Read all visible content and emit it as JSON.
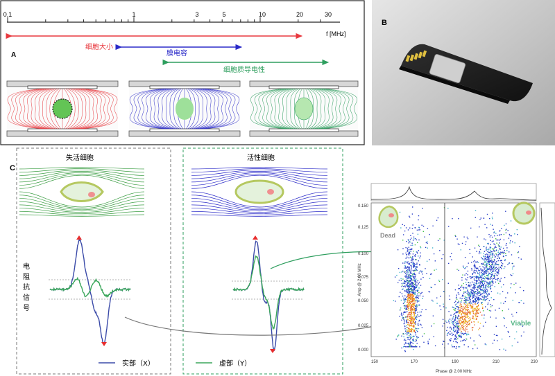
{
  "panel_a": {
    "label": "A",
    "ticks": [
      "0.1",
      "1",
      "3",
      "5",
      "10",
      "20",
      "30"
    ],
    "axis_unit": "f [MHz]",
    "range_cell_size": "细胞大小",
    "range_membrane_capacitance": "膜电容",
    "range_cytoplasm_conductivity": "细胞质导电性",
    "colors": {
      "cell_size": "#e8393f",
      "membrane": "#2a2ac8",
      "cytoplasm": "#2e9e5e"
    }
  },
  "panel_b": {
    "label": "B"
  },
  "panel_c": {
    "label": "C",
    "dead_title": "失活细胞",
    "viable_title": "活性细胞",
    "signal_label": [
      "电",
      "阻",
      "抗",
      "信",
      "号"
    ],
    "legend_real": "实部（X）",
    "legend_imag": "虚部（Y）",
    "real_color": "#3a4aa8",
    "imag_color": "#3aa65a"
  },
  "scatter": {
    "dead_label": "Dead",
    "viable_label": "Viable",
    "y_axis_label": "Amp @ 2.00 MHz",
    "x_axis_label": "Phase @ 2.00 MHz",
    "y_ticks": [
      "0.150",
      "0.125",
      "0.100",
      "0.075",
      "0.050",
      "0.025",
      "0.000"
    ],
    "x_ticks": [
      "150",
      "170",
      "190",
      "210",
      "230"
    ],
    "dead_color": "#8a8a8a",
    "viable_color": "#5cb88a"
  }
}
